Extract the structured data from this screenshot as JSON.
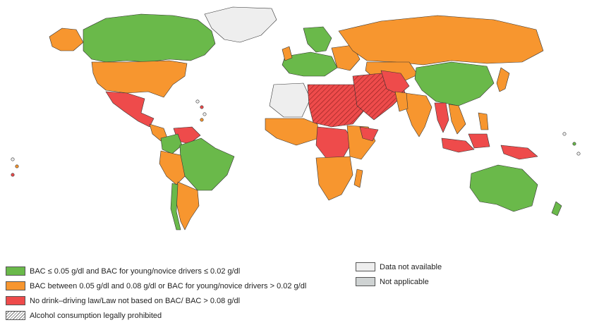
{
  "colors": {
    "green": "#6ab94a",
    "orange": "#f7962f",
    "red": "#ee4b4b",
    "na": "#eeeeee",
    "notapplicable": "#cfd3d3",
    "border": "#333333"
  },
  "legend": {
    "green": "BAC ≤ 0.05 g/dl and BAC for young/novice drivers ≤ 0.02 g/dl",
    "orange": "BAC between 0.05 g/dl and 0.08 g/dl or BAC for young/novice drivers > 0.02 g/dl",
    "red": "No drink–driving law/Law not based on BAC/ BAC > 0.08 g/dl",
    "prohibited": "Alcohol consumption legally prohibited",
    "na": "Data not available",
    "notapplicable": "Not applicable"
  }
}
